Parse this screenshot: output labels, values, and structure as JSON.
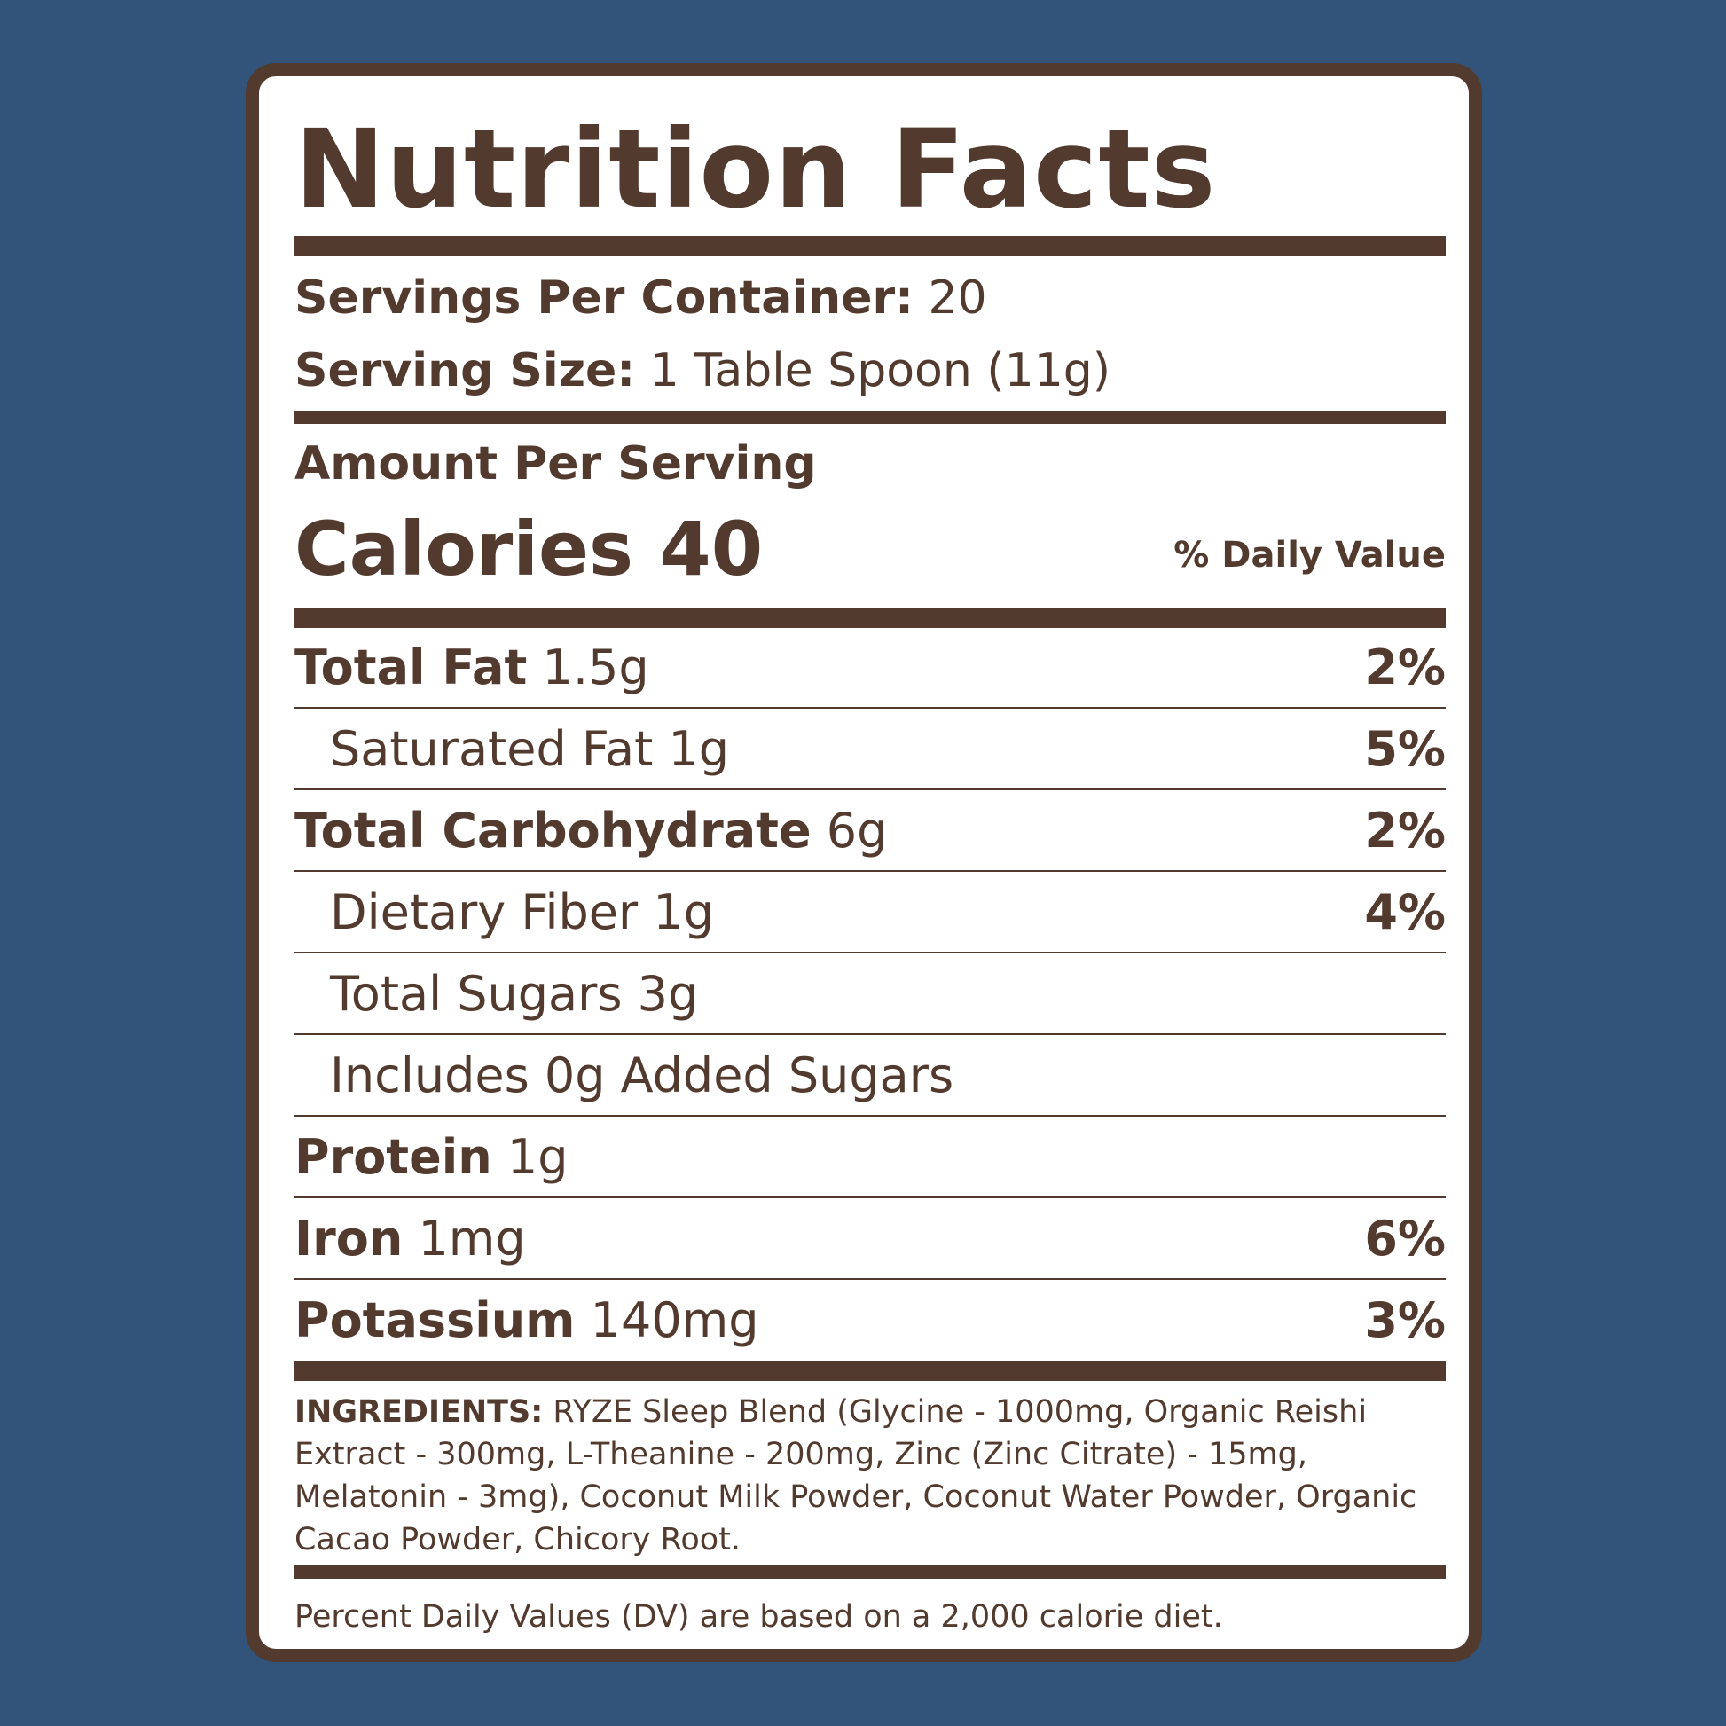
{
  "title": "Nutrition Facts",
  "servings_per_container": {
    "label": "Servings Per Container:",
    "value": "20"
  },
  "serving_size": {
    "label": "Serving Size:",
    "value": "1 Table Spoon (11g)"
  },
  "amount_per_serving": "Amount Per Serving",
  "calories": {
    "label": "Calories",
    "value": "40"
  },
  "daily_value_header": "% Daily Value",
  "nutrients": [
    {
      "name": "Total Fat",
      "amount": "1.5g",
      "dv": "2%"
    },
    {
      "name": "Saturated Fat",
      "amount": "1g",
      "dv": "5%"
    },
    {
      "name": "Total Carbohydrate",
      "amount": "6g",
      "dv": "2%"
    },
    {
      "name": "Dietary Fiber",
      "amount": "1g",
      "dv": "4%"
    },
    {
      "name": "Total Sugars",
      "amount": "3g",
      "dv": ""
    },
    {
      "name": "Includes 0g Added Sugars",
      "amount": "",
      "dv": ""
    },
    {
      "name": "Protein",
      "amount": "1g",
      "dv": ""
    },
    {
      "name": "Iron",
      "amount": "1mg",
      "dv": "6%"
    },
    {
      "name": "Potassium",
      "amount": "140mg",
      "dv": "3%"
    }
  ],
  "ingredients": {
    "label": "INGREDIENTS:",
    "text": "RYZE Sleep Blend (Glycine - 1000mg, Organic Reishi Extract - 300mg, L-Theanine - 200mg, Zinc (Zinc Citrate) - 15mg, Melatonin - 3mg), Coconut Milk Powder, Coconut Water Powder, Organic Cacao Powder, Chicory Root."
  },
  "footnote": "Percent Daily Values (DV) are based on a 2,000 calorie diet.",
  "colors": {
    "background": "#33547a",
    "brown": "#523a2e",
    "panel": "#ffffff"
  }
}
